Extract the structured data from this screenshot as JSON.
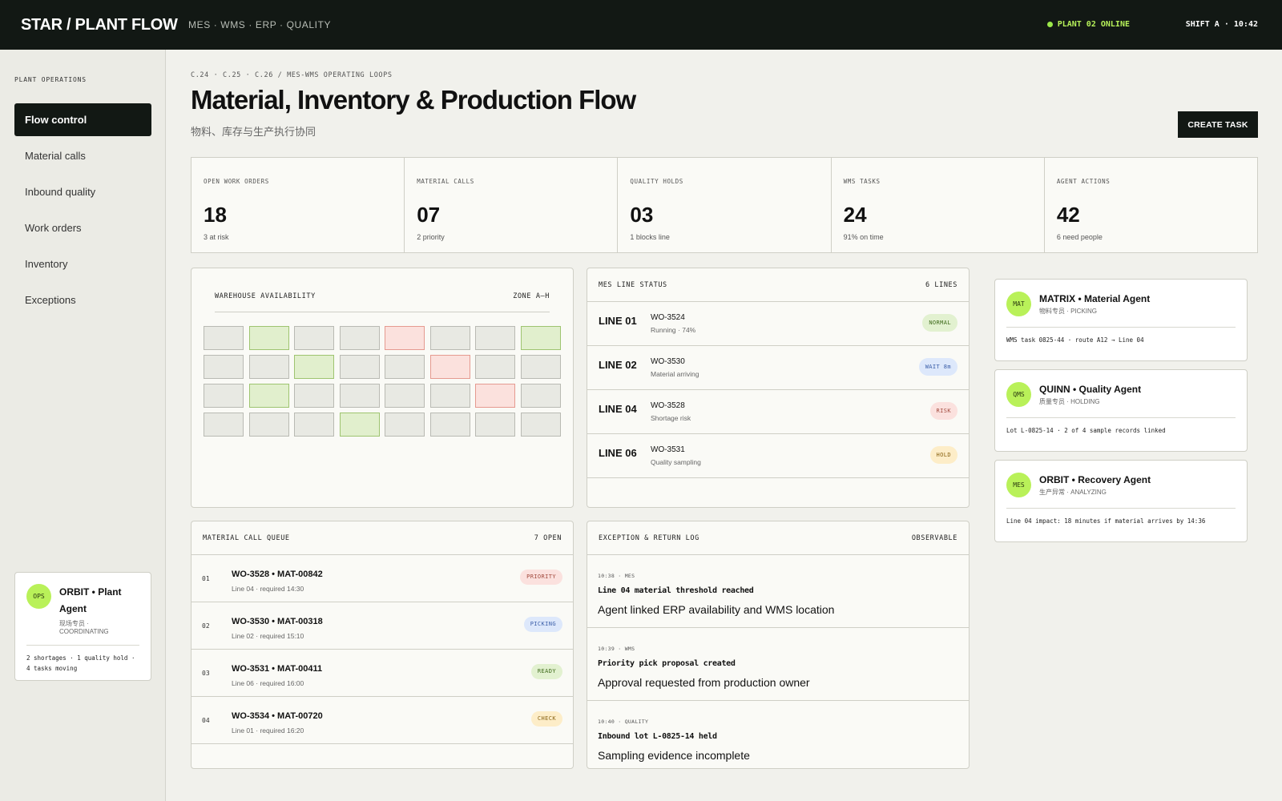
{
  "header": {
    "brand": "STAR / PLANT FLOW",
    "systems": "MES · WMS · ERP · QUALITY",
    "status": "PLANT 02 ONLINE",
    "shift": "SHIFT A · 10:42"
  },
  "sidebar": {
    "heading": "PLANT OPERATIONS",
    "items": [
      {
        "label": "Flow control",
        "active": true
      },
      {
        "label": "Material calls"
      },
      {
        "label": "Inbound quality"
      },
      {
        "label": "Work orders"
      },
      {
        "label": "Inventory"
      },
      {
        "label": "Exceptions"
      }
    ],
    "agent": {
      "badge": "OPS",
      "name": "ORBIT • Plant Agent",
      "role": "现场专员 · COORDINATING",
      "note": "2 shortages · 1 quality hold · 4 tasks moving"
    }
  },
  "page": {
    "breadcrumb": "C.24 · C.25 · C.26 / MES-WMS OPERATING LOOPS",
    "title": "Material, Inventory & Production Flow",
    "subtitle": "物料、库存与生产执行协同",
    "create_button": "CREATE TASK"
  },
  "kpis": [
    {
      "label": "OPEN WORK ORDERS",
      "value": "18",
      "note": "3 at risk"
    },
    {
      "label": "MATERIAL CALLS",
      "value": "07",
      "note": "2 priority"
    },
    {
      "label": "QUALITY HOLDS",
      "value": "03",
      "note": "1 blocks line"
    },
    {
      "label": "WMS TASKS",
      "value": "24",
      "note": "91% on time"
    },
    {
      "label": "AGENT ACTIONS",
      "value": "42",
      "note": "6 need people"
    }
  ],
  "warehouse": {
    "title": "WAREHOUSE AVAILABILITY",
    "zone": "ZONE A–H",
    "grid": [
      [
        "neutral",
        "avail",
        "neutral",
        "neutral",
        "block",
        "neutral",
        "neutral",
        "avail"
      ],
      [
        "neutral",
        "neutral",
        "avail",
        "neutral",
        "neutral",
        "block",
        "neutral",
        "neutral"
      ],
      [
        "neutral",
        "avail",
        "neutral",
        "neutral",
        "neutral",
        "neutral",
        "block",
        "neutral"
      ],
      [
        "neutral",
        "neutral",
        "neutral",
        "avail",
        "neutral",
        "neutral",
        "neutral",
        "neutral"
      ]
    ]
  },
  "mes": {
    "title": "MES LINE STATUS",
    "count": "6 LINES",
    "lines": [
      {
        "name": "LINE 01",
        "wo": "WO-3524",
        "state": "Running · 74%",
        "pill": "NORMAL",
        "tone": "green"
      },
      {
        "name": "LINE 02",
        "wo": "WO-3530",
        "state": "Material arriving",
        "pill": "WAIT 8m",
        "tone": "blue"
      },
      {
        "name": "LINE 04",
        "wo": "WO-3528",
        "state": "Shortage risk",
        "pill": "RISK",
        "tone": "red"
      },
      {
        "name": "LINE 06",
        "wo": "WO-3531",
        "state": "Quality sampling",
        "pill": "HOLD",
        "tone": "amber"
      }
    ]
  },
  "agents": [
    {
      "badge": "MAT",
      "name": "MATRIX • Material Agent",
      "role": "物料专员 · PICKING",
      "note": "WMS task 0825-44 · route A12 → Line 04"
    },
    {
      "badge": "QMS",
      "name": "QUINN • Quality Agent",
      "role": "质量专员 · HOLDING",
      "note": "Lot L-0825-14 · 2 of 4 sample records linked"
    },
    {
      "badge": "MES",
      "name": "ORBIT • Recovery Agent",
      "role": "生产异常 · ANALYZING",
      "note": "Line 04 impact: 18 minutes if material arrives by 14:36"
    }
  ],
  "queue": {
    "title": "MATERIAL CALL QUEUE",
    "count": "7 OPEN",
    "rows": [
      {
        "num": "01",
        "title": "WO-3528 • MAT-00842",
        "sub": "Line 04 · required 14:30",
        "pill": "PRIORITY",
        "tone": "red"
      },
      {
        "num": "02",
        "title": "WO-3530 • MAT-00318",
        "sub": "Line 02 · required 15:10",
        "pill": "PICKING",
        "tone": "blue"
      },
      {
        "num": "03",
        "title": "WO-3531 • MAT-00411",
        "sub": "Line 06 · required 16:00",
        "pill": "READY",
        "tone": "green"
      },
      {
        "num": "04",
        "title": "WO-3534 • MAT-00720",
        "sub": "Line 01 · required 16:20",
        "pill": "CHECK",
        "tone": "amber"
      }
    ]
  },
  "exceptions": {
    "title": "EXCEPTION & RETURN LOG",
    "tag": "OBSERVABLE",
    "rows": [
      {
        "meta": "10:38 · MES",
        "title": "Line 04 material threshold reached",
        "desc": "Agent linked ERP availability and WMS location"
      },
      {
        "meta": "10:39 · WMS",
        "title": "Priority pick proposal created",
        "desc": "Approval requested from production owner"
      },
      {
        "meta": "10:40 · QUALITY",
        "title": "Inbound lot L-0825-14 held",
        "desc": "Sampling evidence incomplete"
      }
    ]
  }
}
